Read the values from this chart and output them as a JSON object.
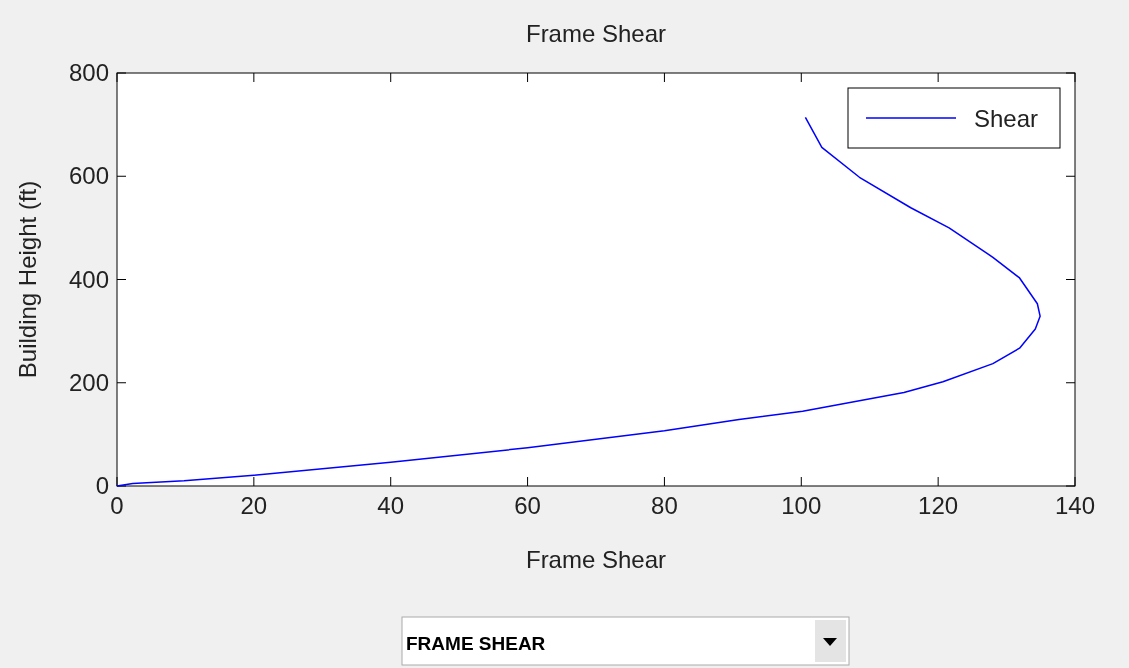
{
  "chart_data": {
    "type": "line",
    "title": "Frame Shear",
    "xlabel": "Frame Shear",
    "ylabel": "Building Height (ft)",
    "xlim": [
      0,
      140
    ],
    "xticks": [
      0,
      20,
      40,
      60,
      80,
      100,
      120,
      140
    ],
    "ylim": [
      0,
      800
    ],
    "yticks": [
      0,
      200,
      400,
      600,
      800
    ],
    "grid": false,
    "legend": "top right",
    "series": [
      {
        "name": "Shear",
        "color": "#0000ff",
        "x": [
          0,
          2.3,
          9.8,
          20,
          40,
          60,
          80,
          90.9,
          100.2,
          115,
          120.7,
          128,
          131.9,
          134.2,
          134.9,
          134.5,
          131.9,
          128,
          121.6,
          116,
          108.5,
          103,
          100.6
        ],
        "values": [
          0,
          5,
          10,
          21,
          46,
          74,
          107,
          129,
          145,
          181,
          202,
          237,
          267,
          304,
          329,
          353,
          403,
          443,
          500,
          539,
          598,
          656,
          714
        ]
      }
    ],
    "annotations": [
      "FRAME SHEAR"
    ]
  }
}
